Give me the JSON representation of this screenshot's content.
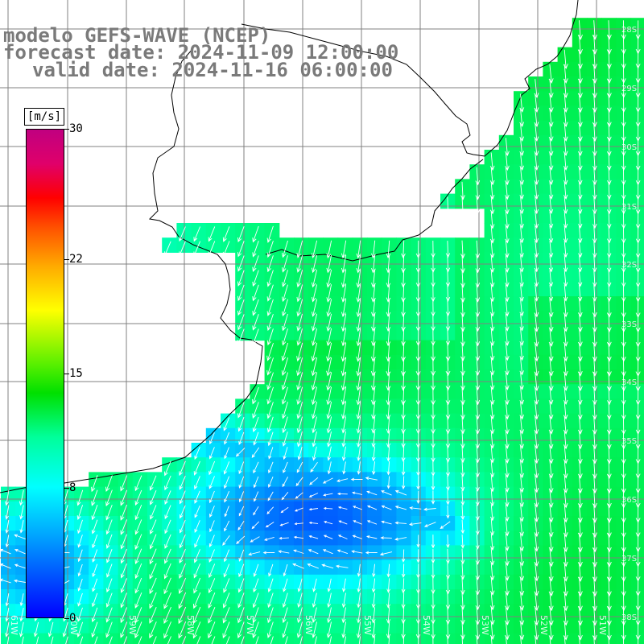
{
  "header": {
    "model_line": "modelo GEFS-WAVE (NCEP)",
    "forecast_line": "forecast date: 2024-11-09 12:00:00",
    "valid_line": "valid date: 2024-11-16 06:00:00"
  },
  "colorbar": {
    "unit": "[m/s]",
    "ticks": [
      "30",
      "22",
      "15",
      "8",
      "0"
    ],
    "tick_values": [
      30,
      22,
      15,
      8,
      0
    ],
    "range": [
      0,
      30
    ],
    "colors": [
      "#0000ff",
      "#00a6ff",
      "#00ffff",
      "#00ff9a",
      "#00e000",
      "#5af000",
      "#ffff00",
      "#ffaa00",
      "#ff5000",
      "#ff0000",
      "#e0006a",
      "#c00080"
    ]
  },
  "map": {
    "field": "wind speed",
    "land_color": "#ffffff",
    "grid_color": "#808080",
    "coast_color": "#000000",
    "vector_color": "#ffffff",
    "bottom_labels": [
      "61W",
      "60W",
      "59W",
      "58W",
      "57W",
      "56W",
      "55W",
      "54W",
      "53W",
      "52W",
      "51W"
    ],
    "right_labels": [
      "28S",
      "29S",
      "30S",
      "31S",
      "32S",
      "33S",
      "34S",
      "35S",
      "36S",
      "37S",
      "38S"
    ]
  }
}
